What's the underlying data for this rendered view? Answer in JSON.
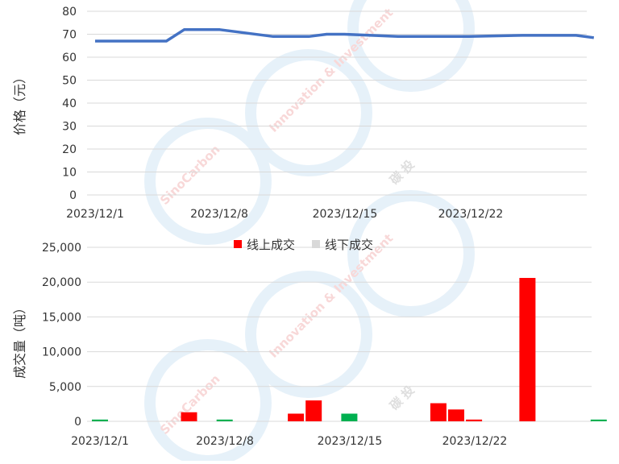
{
  "watermark": {
    "brand": "SinoCarbon",
    "tagline": "Innovation & Investment",
    "cn": "碳 投"
  },
  "chart_data": [
    {
      "type": "line",
      "ylabel": "价格（元）",
      "ylim": [
        0,
        80
      ],
      "yticks": [
        "0",
        "10",
        "20",
        "30",
        "40",
        "50",
        "60",
        "70",
        "80"
      ],
      "xtick_labels": [
        "2023/12/1",
        "2023/12/8",
        "2023/12/15",
        "2023/12/22"
      ],
      "grid": "horizontal",
      "series": [
        {
          "color": "#4472C4",
          "x": [
            "2023/12/1",
            "2023/12/4",
            "2023/12/5",
            "2023/12/6",
            "2023/12/7",
            "2023/12/8",
            "2023/12/11",
            "2023/12/12",
            "2023/12/13",
            "2023/12/14",
            "2023/12/15",
            "2023/12/18",
            "2023/12/19",
            "2023/12/20",
            "2023/12/21",
            "2023/12/22",
            "2023/12/25",
            "2023/12/26",
            "2023/12/27",
            "2023/12/28",
            "2023/12/29"
          ],
          "values": [
            67,
            67,
            67,
            72,
            72,
            72,
            69,
            69,
            69,
            70,
            70,
            69,
            69,
            69,
            69,
            69,
            69.5,
            69.5,
            69.5,
            69.5,
            68.5
          ]
        }
      ]
    },
    {
      "type": "bar",
      "ylabel": "成交量（吨）",
      "ylim": [
        0,
        25000
      ],
      "yticks": [
        "0",
        "5,000",
        "10,000",
        "15,000",
        "20,000",
        "25,000"
      ],
      "xtick_labels": [
        "2023/12/1",
        "2023/12/8",
        "2023/12/15",
        "2023/12/22"
      ],
      "legend_position": "top",
      "grid": "horizontal",
      "categories": [
        "2023/12/1",
        "2023/12/4",
        "2023/12/5",
        "2023/12/6",
        "2023/12/7",
        "2023/12/8",
        "2023/12/11",
        "2023/12/12",
        "2023/12/13",
        "2023/12/14",
        "2023/12/15",
        "2023/12/18",
        "2023/12/19",
        "2023/12/20",
        "2023/12/21",
        "2023/12/22",
        "2023/12/25",
        "2023/12/26",
        "2023/12/27",
        "2023/12/28",
        "2023/12/29"
      ],
      "series": [
        {
          "name": "线上成交",
          "color": "#FF0000",
          "values": [
            0,
            0,
            0,
            1300,
            0,
            0,
            0,
            1100,
            3000,
            0,
            0,
            0,
            0,
            2600,
            1700,
            250,
            20600,
            0,
            0,
            0,
            0
          ]
        },
        {
          "name": "线下成交",
          "color": "#D9D9D9",
          "values": [
            0,
            0,
            0,
            0,
            0,
            0,
            0,
            0,
            0,
            0,
            0,
            0,
            0,
            0,
            0,
            0,
            0,
            0,
            0,
            0,
            0
          ]
        }
      ],
      "highlight_bars": {
        "color": "#00B050",
        "categories": [
          "2023/12/1",
          "2023/12/8",
          "2023/12/15",
          "2023/12/29"
        ],
        "values": [
          250,
          250,
          1100,
          250
        ]
      }
    }
  ]
}
